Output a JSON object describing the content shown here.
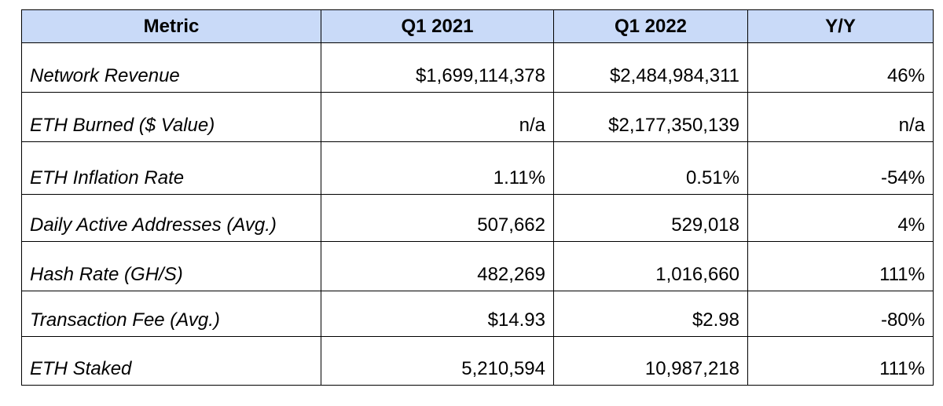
{
  "table": {
    "headers": [
      "Metric",
      "Q1 2021",
      "Q1 2022",
      "Y/Y"
    ],
    "header_bg": "#c9daf8",
    "rows": [
      {
        "metric": "Network Revenue",
        "q1_2021": "$1,699,114,378",
        "q1_2022": "$2,484,984,311",
        "yy": "46%"
      },
      {
        "metric": "ETH Burned ($ Value)",
        "q1_2021": "n/a",
        "q1_2022": "$2,177,350,139",
        "yy": "n/a"
      },
      {
        "metric": "ETH Inflation Rate",
        "q1_2021": "1.11%",
        "q1_2022": "0.51%",
        "yy": "-54%"
      },
      {
        "metric": "Daily Active Addresses (Avg.)",
        "q1_2021": "507,662",
        "q1_2022": "529,018",
        "yy": "4%"
      },
      {
        "metric": "Hash Rate (GH/S)",
        "q1_2021": "482,269",
        "q1_2022": "1,016,660",
        "yy": "111%"
      },
      {
        "metric": "Transaction Fee (Avg.)",
        "q1_2021": "$14.93",
        "q1_2022": "$2.98",
        "yy": "-80%"
      },
      {
        "metric": "ETH Staked",
        "q1_2021": "5,210,594",
        "q1_2022": "10,987,218",
        "yy": "111%"
      }
    ]
  }
}
